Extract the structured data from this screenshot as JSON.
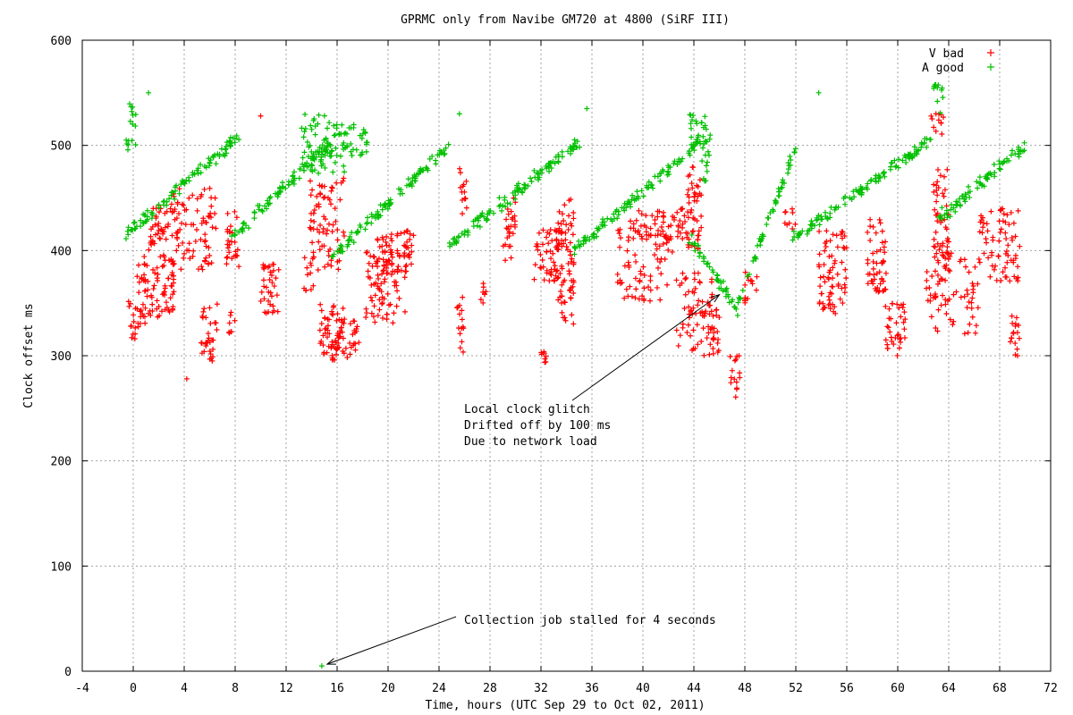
{
  "chart_data": {
    "type": "scatter",
    "title": "GPRMC only from Navibe GM720 at 4800 (SiRF III)",
    "xlabel": "Time, hours (UTC Sep 29 to Oct 02, 2011)",
    "ylabel": "Clock offset ms",
    "xlim": [
      -4,
      72
    ],
    "ylim": [
      0,
      600
    ],
    "x_ticks": [
      "-4",
      "0",
      "4",
      "8",
      "12",
      "16",
      "20",
      "24",
      "28",
      "32",
      "36",
      "40",
      "44",
      "48",
      "52",
      "56",
      "60",
      "64",
      "68",
      "72"
    ],
    "y_ticks": [
      "0",
      "100",
      "200",
      "300",
      "400",
      "500",
      "600"
    ],
    "grid": true,
    "legend_position": "top-right",
    "marker": "+",
    "series": [
      {
        "name": "V bad",
        "color": "#ff0000",
        "clusters": [
          {
            "x": [
              -0.4,
              0.4
            ],
            "y": [
              315,
              355
            ]
          },
          {
            "x": [
              0.3,
              1.0
            ],
            "y": [
              330,
              390
            ]
          },
          {
            "x": [
              0.8,
              3.2
            ],
            "y": [
              335,
              400
            ]
          },
          {
            "x": [
              1.2,
              3.6
            ],
            "y": [
              400,
              445
            ]
          },
          {
            "x": [
              3.0,
              6.6
            ],
            "y": [
              380,
              460
            ]
          },
          {
            "x": [
              5.3,
              6.6
            ],
            "y": [
              295,
              350
            ]
          },
          {
            "x": [
              7.5,
              8.0
            ],
            "y": [
              320,
              350
            ]
          },
          {
            "x": [
              7.3,
              8.3
            ],
            "y": [
              380,
              440
            ]
          },
          {
            "x": [
              10.0,
              11.6
            ],
            "y": [
              340,
              390
            ]
          },
          {
            "x": [
              13.4,
              14.2
            ],
            "y": [
              360,
              400
            ]
          },
          {
            "x": [
              14.6,
              16.6
            ],
            "y": [
              300,
              350
            ]
          },
          {
            "x": [
              15.6,
              17.8
            ],
            "y": [
              295,
              340
            ]
          },
          {
            "x": [
              13.8,
              16.6
            ],
            "y": [
              380,
              470
            ]
          },
          {
            "x": [
              18.2,
              21.4
            ],
            "y": [
              330,
              400
            ]
          },
          {
            "x": [
              19.0,
              22.0
            ],
            "y": [
              370,
              420
            ]
          },
          {
            "x": [
              25.4,
              26.0
            ],
            "y": [
              300,
              360
            ]
          },
          {
            "x": [
              25.6,
              26.2
            ],
            "y": [
              430,
              480
            ]
          },
          {
            "x": [
              27.2,
              27.8
            ],
            "y": [
              350,
              370
            ]
          },
          {
            "x": [
              29.0,
              30.0
            ],
            "y": [
              390,
              450
            ]
          },
          {
            "x": [
              31.4,
              33.8
            ],
            "y": [
              370,
              420
            ]
          },
          {
            "x": [
              33.2,
              34.6
            ],
            "y": [
              330,
              450
            ]
          },
          {
            "x": [
              32.0,
              32.4
            ],
            "y": [
              290,
              305
            ]
          },
          {
            "x": [
              38.0,
              42.4
            ],
            "y": [
              350,
              420
            ]
          },
          {
            "x": [
              39.0,
              43.6
            ],
            "y": [
              410,
              440
            ]
          },
          {
            "x": [
              42.6,
              45.6
            ],
            "y": [
              300,
              380
            ]
          },
          {
            "x": [
              43.4,
              44.6
            ],
            "y": [
              400,
              480
            ]
          },
          {
            "x": [
              45.2,
              46.0
            ],
            "y": [
              300,
              345
            ]
          },
          {
            "x": [
              46.8,
              47.6
            ],
            "y": [
              260,
              300
            ]
          },
          {
            "x": [
              48.0,
              49.0
            ],
            "y": [
              350,
              380
            ]
          },
          {
            "x": [
              51.0,
              52.0
            ],
            "y": [
              420,
              440
            ]
          },
          {
            "x": [
              53.8,
              56.0
            ],
            "y": [
              340,
              420
            ]
          },
          {
            "x": [
              57.6,
              59.2
            ],
            "y": [
              360,
              430
            ]
          },
          {
            "x": [
              59.0,
              60.6
            ],
            "y": [
              300,
              350
            ]
          },
          {
            "x": [
              62.2,
              66.4
            ],
            "y": [
              320,
              400
            ]
          },
          {
            "x": [
              62.8,
              64.0
            ],
            "y": [
              380,
              480
            ]
          },
          {
            "x": [
              66.4,
              69.6
            ],
            "y": [
              370,
              440
            ]
          },
          {
            "x": [
              68.8,
              69.6
            ],
            "y": [
              295,
              340
            ]
          },
          {
            "x": [
              62.6,
              63.6
            ],
            "y": [
              510,
              535
            ]
          }
        ],
        "points": [
          [
            10.0,
            528
          ],
          [
            4.2,
            278
          ],
          [
            63.0,
            530
          ],
          [
            69.4,
            300
          ]
        ]
      },
      {
        "name": "A good",
        "color": "#00c000",
        "segments": [
          {
            "x": [
              -0.6,
              8.4
            ],
            "y": [
              415,
              510
            ]
          },
          {
            "x": [
              7.6,
              16.0
            ],
            "y": [
              410,
              510
            ]
          },
          {
            "x": [
              15.6,
              24.8
            ],
            "y": [
              395,
              500
            ]
          },
          {
            "x": [
              24.8,
              35.2
            ],
            "y": [
              405,
              505
            ]
          },
          {
            "x": [
              34.6,
              44.6
            ],
            "y": [
              400,
              505
            ]
          },
          {
            "x": [
              43.6,
              47.6
            ],
            "y": [
              415,
              340
            ]
          },
          {
            "x": [
              47.4,
              52.2
            ],
            "y": [
              350,
              505
            ]
          },
          {
            "x": [
              51.6,
              62.6
            ],
            "y": [
              410,
              505
            ]
          },
          {
            "x": [
              63.2,
              70.0
            ],
            "y": [
              430,
              500
            ]
          }
        ],
        "clusters": [
          {
            "x": [
              -0.6,
              0.2
            ],
            "y": [
              495,
              540
            ]
          },
          {
            "x": [
              13.2,
              16.6
            ],
            "y": [
              470,
              530
            ]
          },
          {
            "x": [
              16.2,
              18.4
            ],
            "y": [
              490,
              520
            ]
          },
          {
            "x": [
              43.6,
              45.0
            ],
            "y": [
              500,
              530
            ]
          },
          {
            "x": [
              44.6,
              45.4
            ],
            "y": [
              465,
              510
            ]
          },
          {
            "x": [
              62.8,
              63.6
            ],
            "y": [
              530,
              560
            ]
          }
        ],
        "points": [
          [
            1.2,
            550
          ],
          [
            53.8,
            550
          ],
          [
            14.8,
            5
          ],
          [
            35.6,
            535
          ],
          [
            25.6,
            530
          ]
        ]
      }
    ],
    "annotations": [
      {
        "lines": [
          "Local clock glitch",
          "Drifted off by 100 ms",
          "Due to network load"
        ],
        "arrow_to": [
          46.0,
          358
        ]
      },
      {
        "lines": [
          "Collection job stalled for 4 seconds"
        ],
        "arrow_to": [
          14.8,
          5
        ]
      }
    ]
  }
}
